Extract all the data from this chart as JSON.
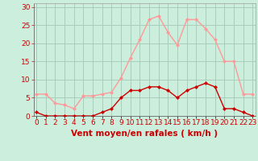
{
  "hours": [
    0,
    1,
    2,
    3,
    4,
    5,
    6,
    7,
    8,
    9,
    10,
    11,
    12,
    13,
    14,
    15,
    16,
    17,
    18,
    19,
    20,
    21,
    22,
    23
  ],
  "wind_avg": [
    1,
    0,
    0,
    0,
    0,
    0,
    0,
    1,
    2,
    5,
    7,
    7,
    8,
    8,
    7,
    5,
    7,
    8,
    9,
    8,
    2,
    2,
    1,
    0
  ],
  "wind_gust": [
    6,
    6,
    3.5,
    3,
    2,
    5.5,
    5.5,
    6,
    6.5,
    10.5,
    16,
    21,
    26.5,
    27.5,
    23,
    19.5,
    26.5,
    26.5,
    24,
    21,
    15,
    15,
    6,
    6
  ],
  "avg_color": "#cc0000",
  "gust_color": "#ff9999",
  "bg_color": "#cceedd",
  "grid_color": "#aaccbb",
  "xlabel": "Vent moyen/en rafales ( km/h )",
  "ylabel_ticks": [
    0,
    5,
    10,
    15,
    20,
    25,
    30
  ],
  "ylim": [
    0,
    31
  ],
  "xlim": [
    -0.3,
    23.3
  ],
  "marker": "D",
  "marker_size": 2.0,
  "line_width": 1.0,
  "xlabel_color": "#cc0000",
  "xlabel_fontsize": 7.5,
  "tick_fontsize": 6.5,
  "tick_color": "#cc0000"
}
